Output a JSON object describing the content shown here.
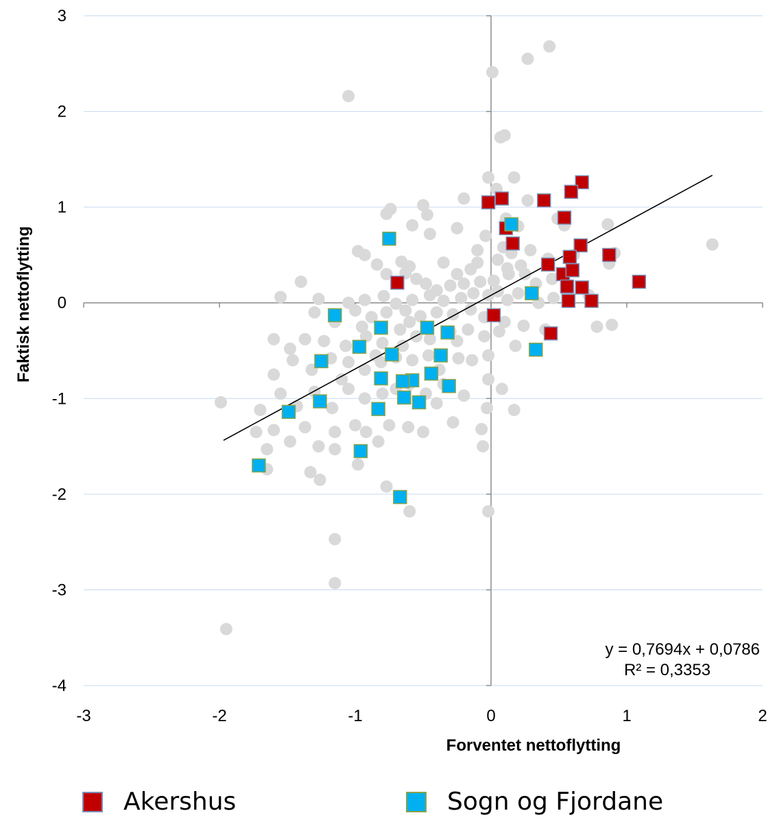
{
  "chart_data": {
    "type": "scatter",
    "xlabel": "Forventet nettoflytting",
    "ylabel": "Faktisk nettoflytting",
    "xlim": [
      -3,
      2
    ],
    "ylim": [
      -4,
      3
    ],
    "xticks": [
      "-3",
      "-2",
      "-1",
      "0",
      "1",
      "2"
    ],
    "yticks": [
      "-4",
      "-3",
      "-2",
      "-1",
      "0",
      "1",
      "2",
      "3"
    ],
    "grid": "horizontal",
    "legend_placement": "bottom",
    "trendline": {
      "slope": 0.7694,
      "intercept": 0.0786,
      "x_range": [
        -1.97,
        1.63
      ]
    },
    "equation_lines": [
      "y = 0,7694x + 0,0786",
      "R² = 0,3353"
    ],
    "colors": {
      "background_points": "#d9d9d9",
      "akershus": "#c00000",
      "sogn": "#00b0f0",
      "grid": "#c6d9f1",
      "axis": "#8c8c8c"
    },
    "series": [
      {
        "name": "",
        "role": "background",
        "points": [
          [
            0.27,
            2.55
          ],
          [
            0.43,
            2.68
          ],
          [
            0.01,
            2.41
          ],
          [
            -1.05,
            2.16
          ],
          [
            0.1,
            1.75
          ],
          [
            0.07,
            1.73
          ],
          [
            -0.02,
            1.31
          ],
          [
            0.17,
            1.31
          ],
          [
            0.04,
            1.19
          ],
          [
            -0.2,
            1.09
          ],
          [
            0.27,
            1.07
          ],
          [
            -0.5,
            1.02
          ],
          [
            -0.74,
            0.98
          ],
          [
            -0.77,
            0.93
          ],
          [
            -0.47,
            0.92
          ],
          [
            0.11,
            0.88
          ],
          [
            0.49,
            0.88
          ],
          [
            0.86,
            0.82
          ],
          [
            -0.58,
            0.81
          ],
          [
            -0.25,
            0.78
          ],
          [
            0.2,
            0.8
          ],
          [
            0.54,
            0.81
          ],
          [
            -0.45,
            0.72
          ],
          [
            -0.04,
            0.7
          ],
          [
            0.09,
            0.58
          ],
          [
            0.15,
            0.52
          ],
          [
            0.29,
            0.55
          ],
          [
            0.91,
            0.52
          ],
          [
            1.63,
            0.61
          ],
          [
            -0.98,
            0.54
          ],
          [
            -0.93,
            0.5
          ],
          [
            -0.66,
            0.43
          ],
          [
            -0.6,
            0.38
          ],
          [
            -0.35,
            0.42
          ],
          [
            -0.25,
            0.3
          ],
          [
            -0.1,
            0.42
          ],
          [
            0.12,
            0.36
          ],
          [
            0.22,
            0.39
          ],
          [
            0.42,
            0.46
          ],
          [
            0.61,
            0.5
          ],
          [
            0.87,
            0.41
          ],
          [
            -0.84,
            0.4
          ],
          [
            -0.77,
            0.3
          ],
          [
            -0.63,
            0.31
          ],
          [
            -0.55,
            0.25
          ],
          [
            -0.48,
            0.2
          ],
          [
            -0.4,
            0.13
          ],
          [
            -0.3,
            0.18
          ],
          [
            -0.2,
            0.2
          ],
          [
            -0.08,
            0.22
          ],
          [
            0.02,
            0.23
          ],
          [
            0.13,
            0.3
          ],
          [
            0.25,
            0.3
          ],
          [
            -1.55,
            0.06
          ],
          [
            -1.4,
            0.22
          ],
          [
            -1.27,
            0.04
          ],
          [
            -1.05,
            0.0
          ],
          [
            -0.93,
            0.03
          ],
          [
            -0.79,
            0.07
          ],
          [
            -0.7,
            -0.01
          ],
          [
            -0.58,
            0.03
          ],
          [
            -0.45,
            0.08
          ],
          [
            -0.35,
            0.02
          ],
          [
            -0.22,
            0.05
          ],
          [
            -0.13,
            0.1
          ],
          [
            -0.02,
            0.08
          ],
          [
            0.05,
            0.12
          ],
          [
            0.12,
            0.03
          ],
          [
            0.2,
            0.1
          ],
          [
            0.33,
            0.2
          ],
          [
            0.46,
            0.05
          ],
          [
            0.57,
            0.12
          ],
          [
            0.72,
            0.08
          ],
          [
            -1.3,
            -0.1
          ],
          [
            -1.15,
            -0.2
          ],
          [
            -1.0,
            -0.08
          ],
          [
            -0.88,
            -0.15
          ],
          [
            -0.77,
            -0.1
          ],
          [
            -0.63,
            -0.08
          ],
          [
            -0.52,
            -0.14
          ],
          [
            -0.4,
            -0.1
          ],
          [
            -0.28,
            -0.12
          ],
          [
            -0.15,
            -0.07
          ],
          [
            -0.05,
            -0.15
          ],
          [
            0.1,
            -0.2
          ],
          [
            0.24,
            -0.24
          ],
          [
            0.4,
            -0.28
          ],
          [
            0.78,
            -0.25
          ],
          [
            0.89,
            -0.23
          ],
          [
            -1.6,
            -0.38
          ],
          [
            -1.48,
            -0.48
          ],
          [
            -1.37,
            -0.38
          ],
          [
            -1.23,
            -0.4
          ],
          [
            -1.07,
            -0.45
          ],
          [
            -0.92,
            -0.35
          ],
          [
            -0.8,
            -0.42
          ],
          [
            -0.67,
            -0.28
          ],
          [
            -0.55,
            -0.35
          ],
          [
            -0.45,
            -0.38
          ],
          [
            -0.3,
            -0.3
          ],
          [
            -0.17,
            -0.28
          ],
          [
            -0.05,
            -0.35
          ],
          [
            0.06,
            -0.3
          ],
          [
            0.18,
            -0.45
          ],
          [
            -1.6,
            -0.75
          ],
          [
            -1.46,
            -0.6
          ],
          [
            -1.32,
            -0.7
          ],
          [
            -1.18,
            -0.58
          ],
          [
            -1.05,
            -0.62
          ],
          [
            -0.93,
            -0.7
          ],
          [
            -0.81,
            -0.62
          ],
          [
            -0.7,
            -0.57
          ],
          [
            -0.58,
            -0.6
          ],
          [
            -0.46,
            -0.55
          ],
          [
            -0.38,
            -0.7
          ],
          [
            -0.24,
            -0.58
          ],
          [
            -0.14,
            -0.6
          ],
          [
            -0.02,
            -0.55
          ],
          [
            -0.02,
            -0.8
          ],
          [
            0.08,
            -0.9
          ],
          [
            -1.55,
            -0.95
          ],
          [
            -1.43,
            -1.08
          ],
          [
            -1.3,
            -0.93
          ],
          [
            -1.17,
            -1.1
          ],
          [
            -1.05,
            -0.9
          ],
          [
            -0.93,
            -1.0
          ],
          [
            -0.8,
            -0.95
          ],
          [
            -0.7,
            -0.9
          ],
          [
            -0.6,
            -0.85
          ],
          [
            -0.48,
            -0.95
          ],
          [
            -0.4,
            -1.05
          ],
          [
            -0.2,
            -0.97
          ],
          [
            -0.03,
            -1.1
          ],
          [
            0.17,
            -1.12
          ],
          [
            -1.99,
            -1.04
          ],
          [
            -1.7,
            -1.12
          ],
          [
            -1.73,
            -1.35
          ],
          [
            -1.65,
            -1.53
          ],
          [
            -1.6,
            -1.33
          ],
          [
            -1.48,
            -1.45
          ],
          [
            -1.37,
            -1.3
          ],
          [
            -1.27,
            -1.5
          ],
          [
            -1.15,
            -1.35
          ],
          [
            -1.0,
            -1.28
          ],
          [
            -0.92,
            -1.35
          ],
          [
            -0.83,
            -1.45
          ],
          [
            -0.75,
            -1.28
          ],
          [
            -0.61,
            -1.3
          ],
          [
            -0.5,
            -1.35
          ],
          [
            -0.28,
            -1.25
          ],
          [
            -0.07,
            -1.32
          ],
          [
            -0.06,
            -1.5
          ],
          [
            -1.65,
            -1.74
          ],
          [
            -1.33,
            -1.77
          ],
          [
            -1.26,
            -1.85
          ],
          [
            -0.98,
            -1.69
          ],
          [
            -0.77,
            -1.92
          ],
          [
            -1.15,
            -1.53
          ],
          [
            -0.6,
            -2.18
          ],
          [
            -0.02,
            -2.18
          ],
          [
            -1.15,
            -2.47
          ],
          [
            -1.15,
            -2.93
          ],
          [
            -1.95,
            -3.41
          ],
          [
            -0.1,
            0.55
          ],
          [
            0.3,
            0.1
          ],
          [
            0.35,
            0.0
          ],
          [
            -0.25,
            -0.4
          ],
          [
            -0.6,
            -0.2
          ],
          [
            -0.95,
            -0.25
          ],
          [
            -1.1,
            -0.8
          ],
          [
            -0.35,
            -0.85
          ],
          [
            0.05,
            0.45
          ],
          [
            -0.15,
            0.35
          ],
          [
            0.45,
            0.25
          ],
          [
            -0.65,
            -0.45
          ],
          [
            -0.85,
            -0.55
          ]
        ]
      },
      {
        "name": "Akershus",
        "role": "highlight-red",
        "points": [
          [
            0.67,
            1.26
          ],
          [
            0.59,
            1.16
          ],
          [
            0.08,
            1.09
          ],
          [
            -0.02,
            1.05
          ],
          [
            0.39,
            1.07
          ],
          [
            0.54,
            0.89
          ],
          [
            0.11,
            0.78
          ],
          [
            0.16,
            0.62
          ],
          [
            0.66,
            0.6
          ],
          [
            0.42,
            0.4
          ],
          [
            0.58,
            0.48
          ],
          [
            0.87,
            0.5
          ],
          [
            0.53,
            0.3
          ],
          [
            0.6,
            0.34
          ],
          [
            -0.69,
            0.21
          ],
          [
            1.09,
            0.22
          ],
          [
            0.56,
            0.17
          ],
          [
            0.67,
            0.16
          ],
          [
            0.57,
            0.02
          ],
          [
            0.74,
            0.02
          ],
          [
            0.02,
            -0.13
          ],
          [
            0.44,
            -0.32
          ]
        ]
      },
      {
        "name": "Sogn og Fjordane",
        "role": "highlight-blue",
        "points": [
          [
            0.15,
            0.82
          ],
          [
            -0.75,
            0.67
          ],
          [
            0.3,
            0.1
          ],
          [
            -1.15,
            -0.13
          ],
          [
            -0.47,
            -0.26
          ],
          [
            -0.81,
            -0.26
          ],
          [
            -0.32,
            -0.31
          ],
          [
            -0.97,
            -0.46
          ],
          [
            0.33,
            -0.49
          ],
          [
            -0.73,
            -0.54
          ],
          [
            -0.37,
            -0.55
          ],
          [
            -1.25,
            -0.61
          ],
          [
            -0.44,
            -0.74
          ],
          [
            -0.81,
            -0.79
          ],
          [
            -0.58,
            -0.81
          ],
          [
            -0.65,
            -0.82
          ],
          [
            -0.31,
            -0.87
          ],
          [
            -0.64,
            -0.99
          ],
          [
            -1.26,
            -1.03
          ],
          [
            -0.53,
            -1.04
          ],
          [
            -0.83,
            -1.11
          ],
          [
            -1.49,
            -1.14
          ],
          [
            -0.96,
            -1.55
          ],
          [
            -1.71,
            -1.7
          ],
          [
            -0.67,
            -2.03
          ]
        ]
      }
    ]
  },
  "legend": {
    "items": [
      {
        "label": "Akershus",
        "color": "#c00000",
        "border": "#7b8fb8"
      },
      {
        "label": "Sogn og Fjordane",
        "color": "#00b0f0",
        "border": "#8aa34a"
      }
    ]
  }
}
